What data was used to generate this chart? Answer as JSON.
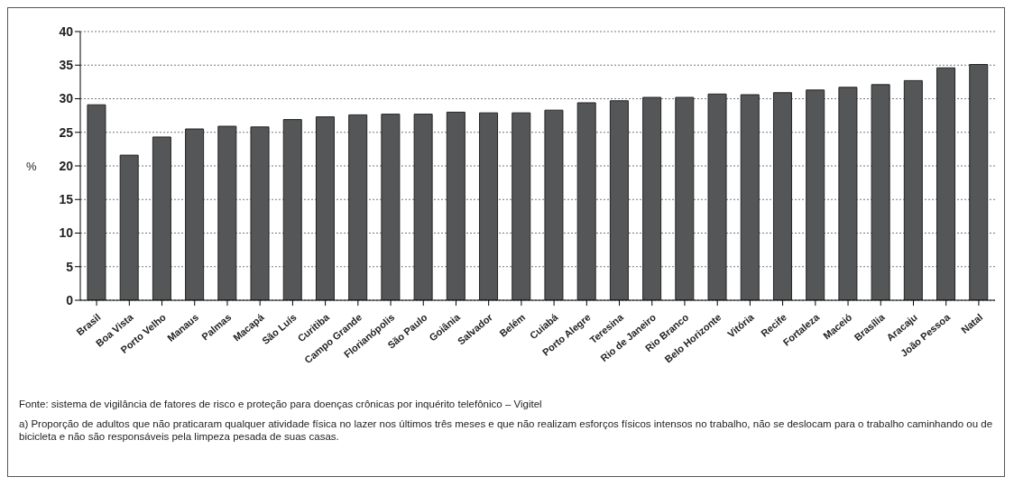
{
  "chart_data": {
    "type": "bar",
    "ylabel": "%",
    "categories": [
      "Brasil",
      "Boa Vista",
      "Porto Velho",
      "Manaus",
      "Palmas",
      "Macapá",
      "São Luís",
      "Curitiba",
      "Campo Grande",
      "Florianópolis",
      "São Paulo",
      "Goiânia",
      "Salvador",
      "Belém",
      "Cuiabá",
      "Porto Alegre",
      "Teresina",
      "Rio de Janeiro",
      "Rio Branco",
      "Belo Horizonte",
      "Vitória",
      "Recife",
      "Fortaleza",
      "Maceió",
      "Brasília",
      "Aracaju",
      "João Pessoa",
      "Natal"
    ],
    "values": [
      29.1,
      21.6,
      24.3,
      25.5,
      25.9,
      25.8,
      26.9,
      27.3,
      27.6,
      27.7,
      27.7,
      28.0,
      27.9,
      27.9,
      28.3,
      29.4,
      29.7,
      30.2,
      30.2,
      30.7,
      30.6,
      30.9,
      31.3,
      31.7,
      32.1,
      32.7,
      34.6,
      35.1
    ],
    "color": "#555657",
    "ylim": [
      0,
      40
    ],
    "yticks": [
      0,
      5,
      10,
      15,
      20,
      25,
      30,
      35,
      40
    ],
    "grid": "y",
    "legend": false,
    "annotations": [
      "Fonte: sistema de vigilância de fatores de risco e proteção para doenças crônicas por inquérito telefônico – Vigitel",
      "a)  Proporção de adultos que não praticaram qualquer atividade física no lazer nos últimos três meses e que não realizam esforços físicos intensos no trabalho, não se deslocam para o trabalho caminhando ou de bicicleta e não são responsáveis pela limpeza pesada de suas casas."
    ]
  }
}
